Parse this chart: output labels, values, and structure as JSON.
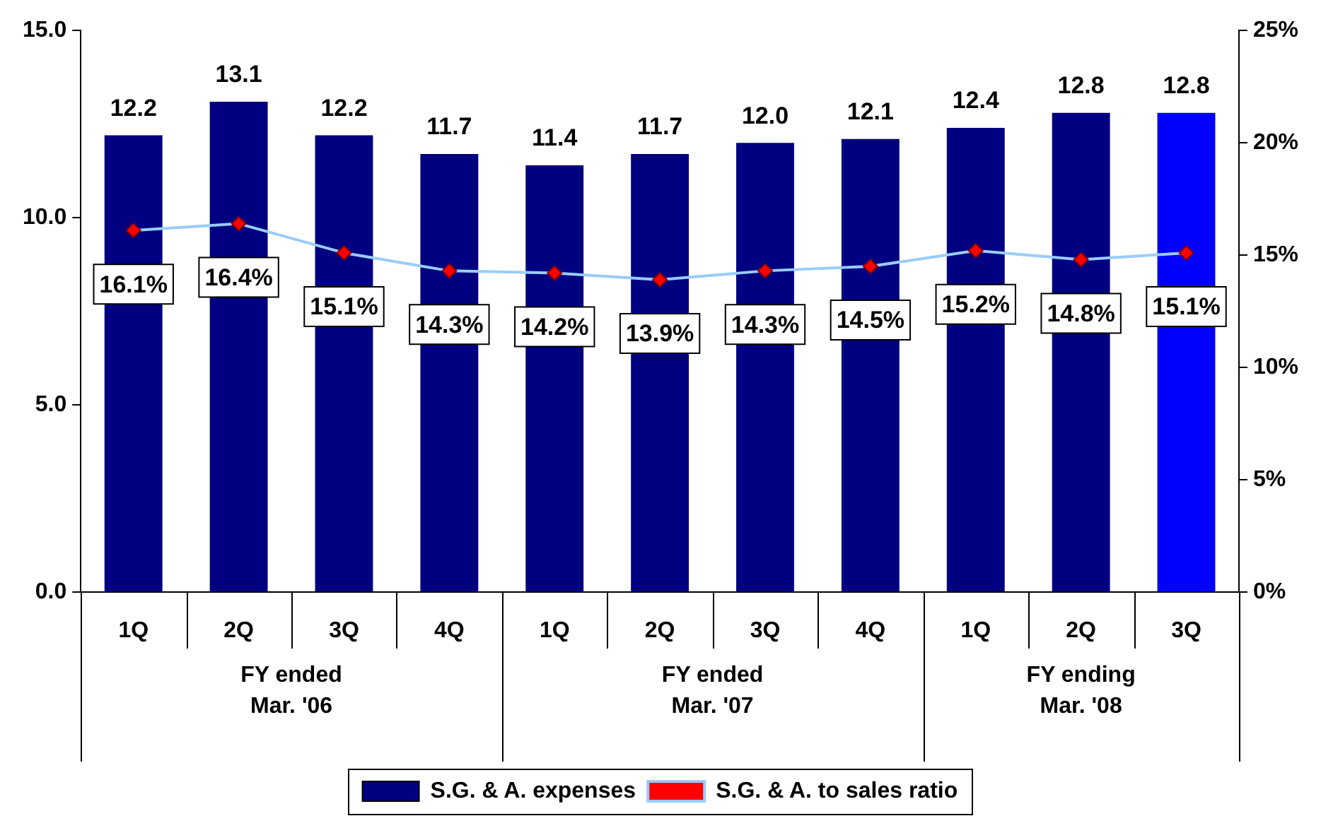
{
  "chart_data": {
    "type": "bar",
    "categories": [
      "1Q",
      "2Q",
      "3Q",
      "4Q",
      "1Q",
      "2Q",
      "3Q",
      "4Q",
      "1Q",
      "2Q",
      "3Q"
    ],
    "annotations": [
      "FY ended Mar. '06",
      "FY ended Mar. '07",
      "FY ending Mar. '08"
    ],
    "series": [
      {
        "name": "S.G. & A. expenses",
        "colors": [
          "#000080",
          "#000080",
          "#000080",
          "#000080",
          "#000080",
          "#000080",
          "#000080",
          "#000080",
          "#000080",
          "#000080",
          "#0000ff"
        ],
        "values": [
          12.2,
          13.1,
          12.2,
          11.7,
          11.4,
          11.7,
          12.0,
          12.1,
          12.4,
          12.8,
          12.8
        ],
        "value_labels": [
          "12.2",
          "13.1",
          "12.2",
          "11.7",
          "11.4",
          "11.7",
          "12.0",
          "12.1",
          "12.4",
          "12.8",
          "12.8"
        ]
      },
      {
        "name": "S.G. & A. to sales ratio",
        "type": "line",
        "axis": "y2",
        "color": "#99ccff",
        "marker": "diamond",
        "values": [
          16.1,
          16.4,
          15.1,
          14.3,
          14.2,
          13.9,
          14.3,
          14.5,
          15.2,
          14.8,
          15.1
        ],
        "value_labels": [
          "16.1%",
          "16.4%",
          "15.1%",
          "14.3%",
          "14.2%",
          "13.9%",
          "14.3%",
          "14.5%",
          "15.2%",
          "14.8%",
          "15.1%"
        ]
      }
    ],
    "ylim": [
      0,
      15
    ],
    "yticks": [
      {
        "value": 0,
        "label": "0.0"
      },
      {
        "value": 5,
        "label": "5.0"
      },
      {
        "value": 10,
        "label": "10.0"
      },
      {
        "value": 15,
        "label": "15.0"
      }
    ],
    "y2lim": [
      0,
      25
    ],
    "y2ticks": [
      {
        "value": 0,
        "label": "0%"
      },
      {
        "value": 5,
        "label": "5%"
      },
      {
        "value": 10,
        "label": "10%"
      },
      {
        "value": 15,
        "label": "15%"
      },
      {
        "value": 20,
        "label": "20%"
      },
      {
        "value": 25,
        "label": "25%"
      }
    ],
    "grid": false,
    "legend": "bottom"
  }
}
